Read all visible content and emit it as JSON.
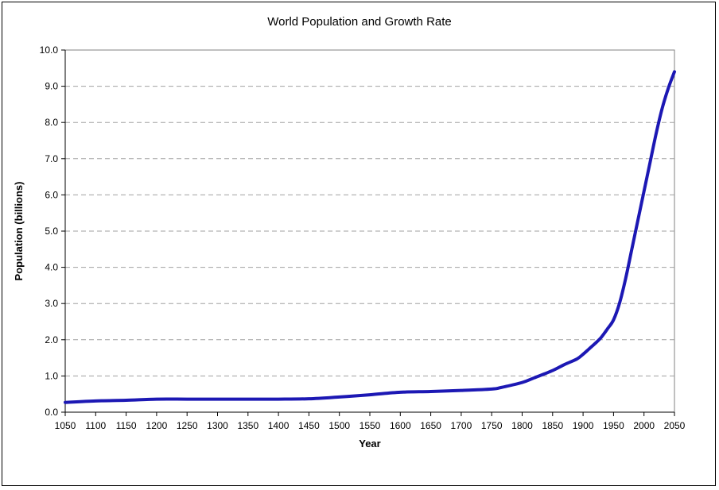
{
  "chart_data": {
    "type": "line",
    "title": "World Population and Growth Rate",
    "xlabel": "Year",
    "ylabel": "Population (billions)",
    "xlim": [
      1050,
      2050
    ],
    "ylim": [
      0,
      10
    ],
    "x_ticks": [
      "1050",
      "1100",
      "1150",
      "1200",
      "1250",
      "1300",
      "1350",
      "1400",
      "1450",
      "1500",
      "1550",
      "1600",
      "1650",
      "1700",
      "1750",
      "1800",
      "1850",
      "1900",
      "1950",
      "2000",
      "2050"
    ],
    "y_ticks": [
      "0.0",
      "1.0",
      "2.0",
      "3.0",
      "4.0",
      "5.0",
      "6.0",
      "7.0",
      "8.0",
      "9.0",
      "10.0"
    ],
    "grid": "horizontal-dashed",
    "legend": "none",
    "series": [
      {
        "color": "#1c18b4",
        "x": [
          1050,
          1100,
          1150,
          1200,
          1250,
          1300,
          1350,
          1400,
          1450,
          1500,
          1550,
          1600,
          1650,
          1700,
          1750,
          1765,
          1800,
          1820,
          1850,
          1870,
          1890,
          1900,
          1910,
          1920,
          1930,
          1940,
          1950,
          1960,
          1970,
          1980,
          1990,
          2000,
          2010,
          2020,
          2030,
          2040,
          2050
        ],
        "y": [
          0.27,
          0.31,
          0.33,
          0.36,
          0.36,
          0.36,
          0.36,
          0.36,
          0.37,
          0.42,
          0.48,
          0.55,
          0.57,
          0.6,
          0.64,
          0.68,
          0.82,
          0.95,
          1.15,
          1.32,
          1.47,
          1.6,
          1.75,
          1.9,
          2.07,
          2.3,
          2.55,
          3.02,
          3.7,
          4.5,
          5.3,
          6.1,
          6.9,
          7.7,
          8.4,
          8.95,
          9.4
        ]
      }
    ]
  }
}
